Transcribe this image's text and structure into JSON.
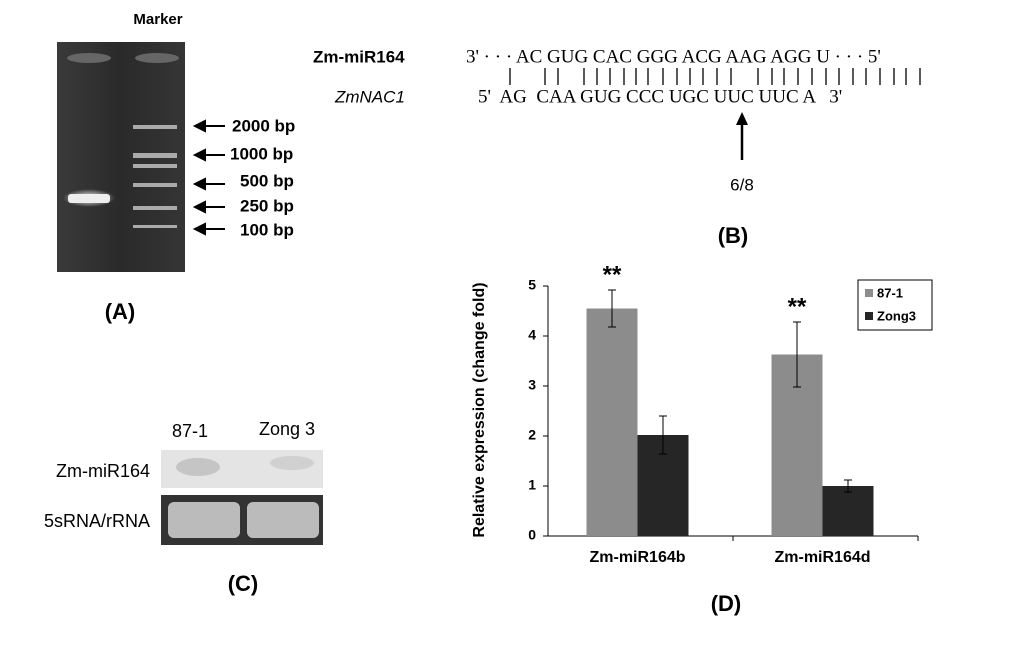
{
  "panel_a": {
    "header": "Marker",
    "markers": [
      "2000 bp",
      "1000 bp",
      "500 bp",
      "250 bp",
      "100 bp"
    ],
    "label": "(A)"
  },
  "panel_b": {
    "mirna_name": "Zm-miR164",
    "mirna_seq": "3' · · · AC GUG CAC GGG ACG AAG AGG U · · · 5'",
    "target_name": "ZmNAC1",
    "target_seq": "5'  AG  CAA GUG CCC UGC UUC UUC A   3'",
    "cleavage": "6/8",
    "label": "(B)"
  },
  "panel_c": {
    "lanes": [
      "87-1",
      "Zong 3"
    ],
    "rows": [
      "Zm-miR164",
      "5sRNA/rRNA"
    ],
    "label": "(C)"
  },
  "chart_data": {
    "type": "bar",
    "y_label": "Relative expression (change fold)",
    "categories": [
      "Zm-miR164b",
      "Zm-miR164d"
    ],
    "series": [
      {
        "name": "87-1",
        "color": "#8c8c8c",
        "values": [
          4.55,
          3.63
        ],
        "errors": [
          0.37,
          0.65
        ],
        "significance": [
          "**",
          "**"
        ]
      },
      {
        "name": "Zong3",
        "color": "#262626",
        "values": [
          2.02,
          1.0
        ],
        "errors": [
          0.38,
          0.12
        ]
      }
    ],
    "ylim": [
      0,
      5
    ],
    "yticks": [
      0,
      1,
      2,
      3,
      4,
      5
    ],
    "legend": "upper right",
    "label": "(D)"
  }
}
